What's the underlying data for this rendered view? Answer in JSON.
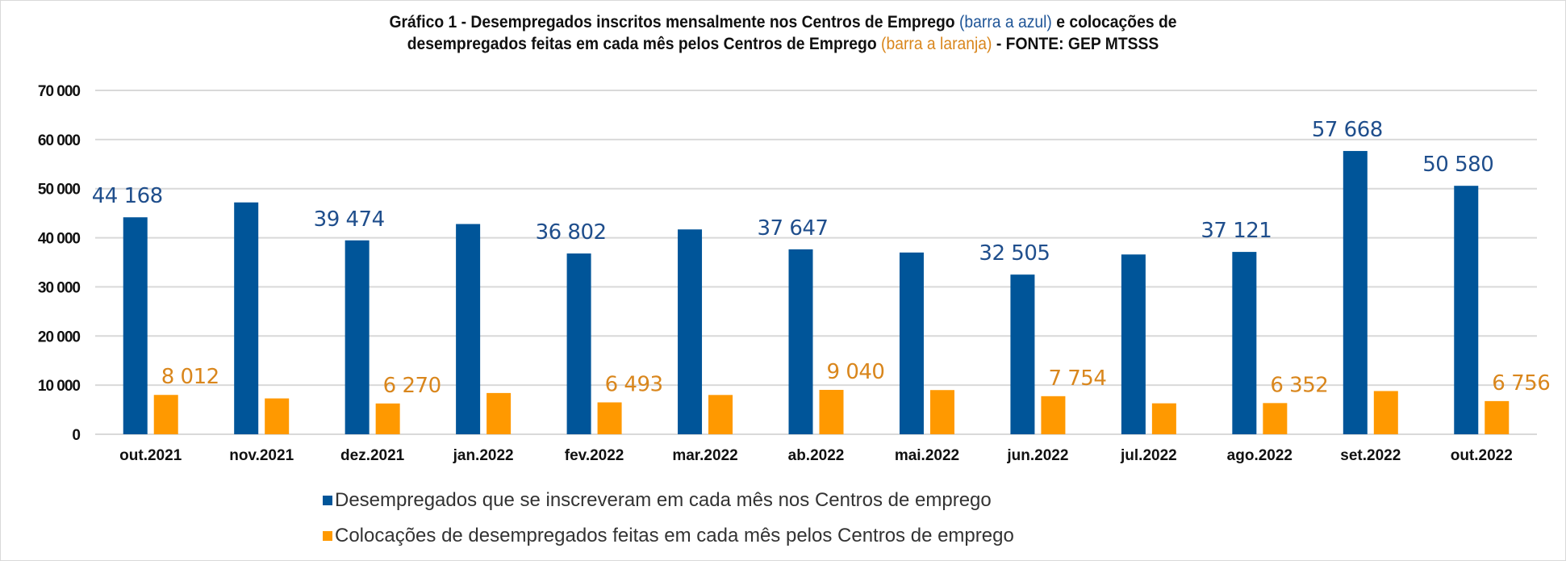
{
  "chart_data": {
    "type": "bar",
    "title": {
      "line1_part1": "Gráfico 1 - Desempregados inscritos mensalmente nos Centros de Emprego ",
      "line1_blue": "(barra a azul)",
      "line1_part2": " e colocações de",
      "line2_part1": "desempregados feitas em cada mês pelos Centros de Emprego ",
      "line2_orange": "(barra a laranja)",
      "line2_part2": " - FONTE:  GEP  MTSSS"
    },
    "xlabel": "",
    "ylabel": "",
    "ylim": [
      0,
      70000
    ],
    "yticks": [
      0,
      10000,
      20000,
      30000,
      40000,
      50000,
      60000,
      70000
    ],
    "ytick_labels": [
      "0",
      "10 000",
      "20 000",
      "30 000",
      "40 000",
      "50 000",
      "60 000",
      "70 000"
    ],
    "grid": true,
    "legend_position": "bottom",
    "categories": [
      "out.2021",
      "nov.2021",
      "dez.2021",
      "jan.2022",
      "fev.2022",
      "mar.2022",
      "ab.2022",
      "mai.2022",
      "jun.2022",
      "jul.2022",
      "ago.2022",
      "set.2022",
      "out.2022"
    ],
    "series": [
      {
        "name": "Desempregados que se inscreveram em cada mês nos Centros de emprego",
        "color": "#005599",
        "values": [
          44168,
          47200,
          39474,
          42800,
          36802,
          41700,
          37647,
          37000,
          32505,
          36600,
          37121,
          57668,
          50580
        ],
        "labels": [
          "44 168",
          "",
          "39 474",
          "",
          "36 802",
          "",
          "37 647",
          "",
          "32 505",
          "",
          "37 121",
          "57 668",
          "50 580"
        ]
      },
      {
        "name": "Colocações de desempregados feitas em cada mês pelos Centros de emprego",
        "color": "#ff9900",
        "values": [
          8012,
          7300,
          6270,
          8400,
          6493,
          8000,
          9040,
          9000,
          7754,
          6300,
          6352,
          8800,
          6756
        ],
        "labels": [
          "8 012",
          "",
          "6 270",
          "",
          "6 493",
          "",
          "9 040",
          "",
          "7 754",
          "",
          "6 352",
          "",
          "6 756"
        ]
      }
    ]
  }
}
